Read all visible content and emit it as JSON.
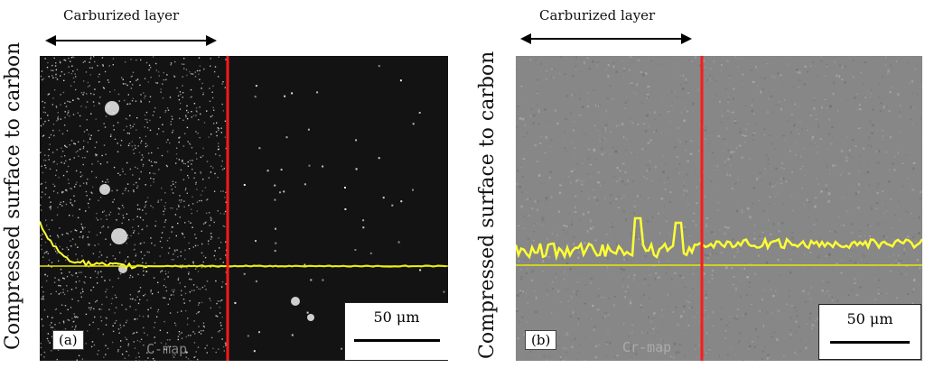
{
  "figure": {
    "side_label": "Compressed surface to carbon",
    "panels": [
      {
        "id": "a",
        "tag": "(a)",
        "carburized_label": "Carburized layer",
        "scale_label": "50 μm",
        "map_text": "C-map",
        "colors": {
          "background": "#121212",
          "dots": "#e6e6e6",
          "profile": "#ffff33",
          "boundary": "#ff1a1a"
        }
      },
      {
        "id": "b",
        "tag": "(b)",
        "carburized_label": "Carburized layer",
        "scale_label": "50 μm",
        "map_text": "Cr-map",
        "colors": {
          "background": "#8a8a8a",
          "texture": "#6c6c6c",
          "profile": "#ffff33",
          "boundary": "#ff1a1a"
        }
      }
    ]
  }
}
